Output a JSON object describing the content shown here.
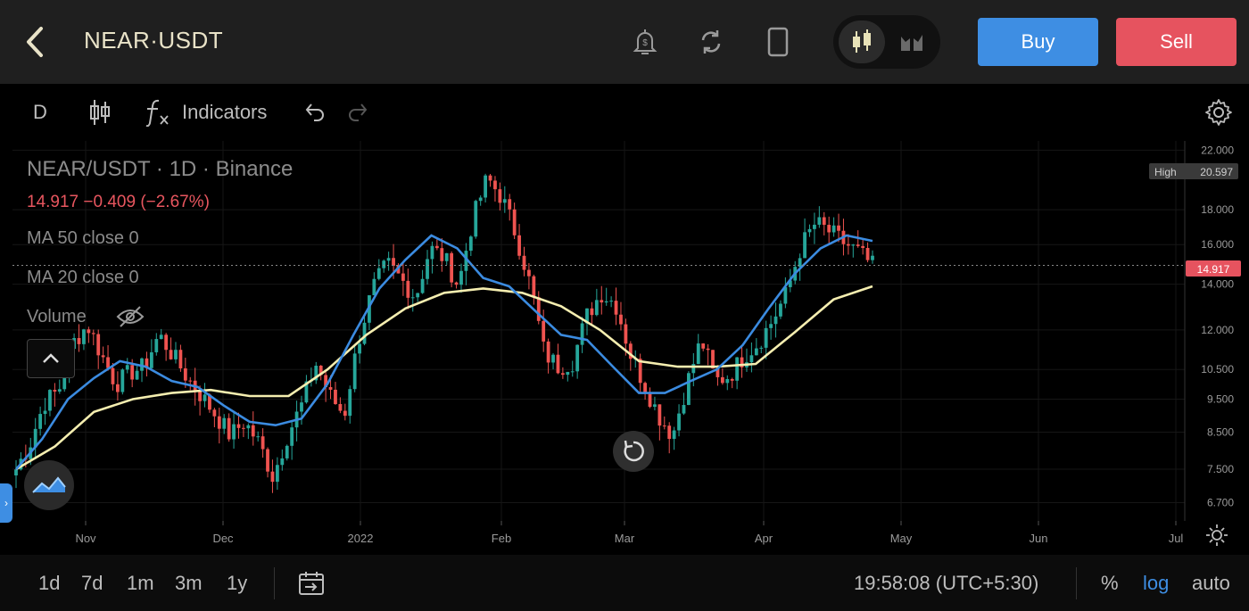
{
  "header": {
    "pair": "NEAR·USDT",
    "buy_label": "Buy",
    "sell_label": "Sell",
    "colors": {
      "buy": "#3e8ee3",
      "sell": "#e6535f"
    }
  },
  "toolbar": {
    "interval": "D",
    "indicators_label": "Indicators"
  },
  "legend": {
    "title": "NEAR/USDT · 1D · Binance",
    "price_line": "14.917  −0.409 (−2.67%)",
    "ma50": "MA 50 close 0",
    "ma20": "MA 20 close 0",
    "volume": "Volume"
  },
  "chart_data": {
    "type": "candlestick",
    "scale": "log",
    "ylim": [
      6.3,
      22.7
    ],
    "y_ticks": [
      "22.000",
      "18.000",
      "16.000",
      "14.000",
      "12.000",
      "10.500",
      "9.500",
      "8.500",
      "7.500",
      "6.700"
    ],
    "x_ticks": [
      "Nov",
      "Dec",
      "2022",
      "Feb",
      "Mar",
      "Apr",
      "May",
      "Jun",
      "Jul"
    ],
    "high_label": "High",
    "high_value": "20.597",
    "last_price": "14.917",
    "colors": {
      "up": "#26a69a",
      "down": "#ef5350",
      "ma20": "#3b8be0",
      "ma50": "#f5eeb0"
    },
    "close_series": [
      7.5,
      8.2,
      9.4,
      9.8,
      11.5,
      12.2,
      11.0,
      10.0,
      10.4,
      10.6,
      11.8,
      11.0,
      10.2,
      9.6,
      9.0,
      8.4,
      8.8,
      8.2,
      7.3,
      8.4,
      9.3,
      10.7,
      9.6,
      9.0,
      11.6,
      13.8,
      15.0,
      14.2,
      13.4,
      15.8,
      15.3,
      13.9,
      17.4,
      20.0,
      18.8,
      16.6,
      14.0,
      11.1,
      10.6,
      10.8,
      12.6,
      13.6,
      13.1,
      11.1,
      10.0,
      9.0,
      8.4,
      10.0,
      11.6,
      10.1,
      10.3,
      11.0,
      11.5,
      12.4,
      13.6,
      15.9,
      17.2,
      16.7,
      16.1,
      15.6,
      14.9
    ],
    "ma20_series": [
      7.5,
      8.3,
      9.5,
      10.2,
      10.8,
      10.6,
      10.1,
      9.9,
      9.3,
      8.8,
      8.7,
      8.9,
      10.0,
      11.8,
      13.8,
      15.2,
      16.5,
      15.8,
      14.3,
      13.9,
      12.8,
      11.8,
      11.6,
      10.6,
      9.7,
      9.7,
      10.1,
      10.5,
      11.4,
      12.9,
      14.5,
      15.8,
      16.5,
      16.2
    ],
    "ma50_series": [
      7.5,
      8.1,
      9.1,
      9.5,
      9.7,
      9.8,
      9.6,
      9.6,
      10.5,
      11.8,
      12.9,
      13.6,
      13.8,
      13.6,
      13.0,
      12.0,
      10.8,
      10.6,
      10.6,
      10.7,
      11.9,
      13.3,
      13.9
    ]
  },
  "bottom": {
    "ranges": [
      "1d",
      "7d",
      "1m",
      "3m",
      "1y"
    ],
    "time": "19:58:08 (UTC+5:30)",
    "percent": "%",
    "log": "log",
    "auto": "auto"
  }
}
